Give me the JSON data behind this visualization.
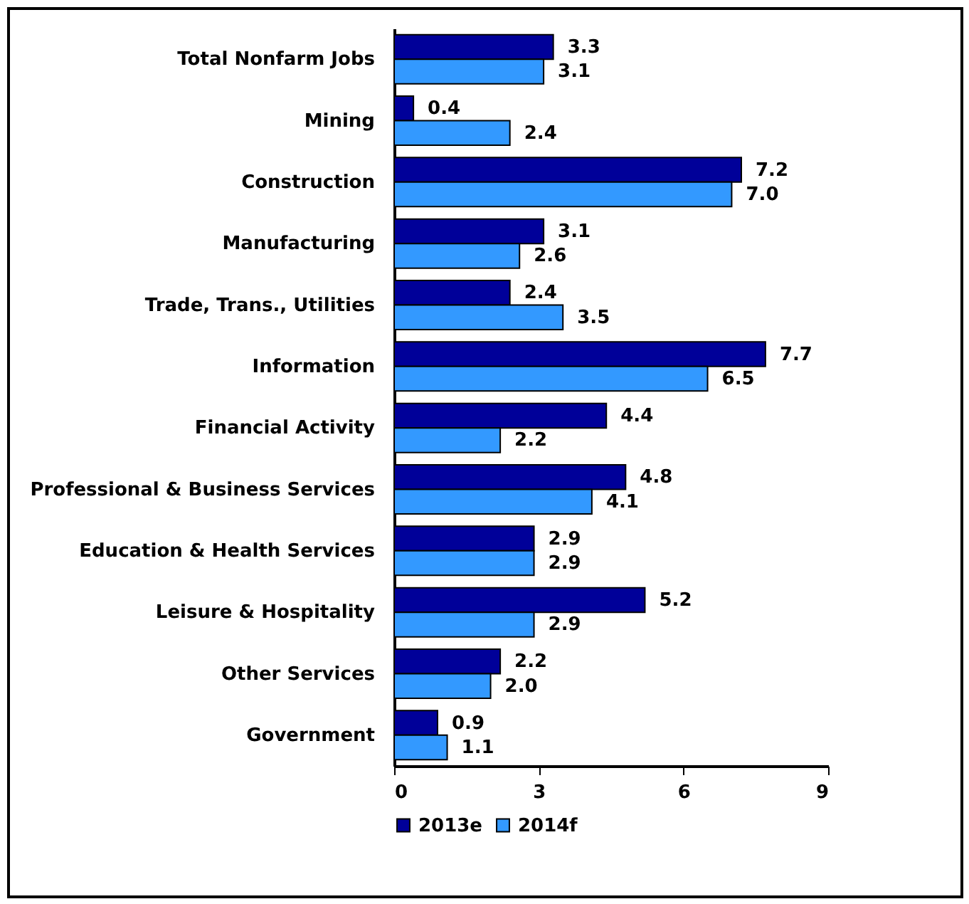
{
  "chart_data": {
    "type": "bar",
    "orientation": "horizontal",
    "categories": [
      "Total Nonfarm Jobs",
      "Mining",
      "Construction",
      "Manufacturing",
      "Trade, Trans., Utilities",
      "Information",
      "Financial Activity",
      "Professional & Business Services",
      "Education & Health Services",
      "Leisure & Hospitality",
      "Other Services",
      "Government"
    ],
    "series": [
      {
        "name": "2013e",
        "color": "#000099",
        "values": [
          3.3,
          0.4,
          7.2,
          3.1,
          2.4,
          7.7,
          4.4,
          4.8,
          2.9,
          5.2,
          2.2,
          0.9
        ],
        "value_labels": [
          "3.3",
          "0.4",
          "7.2",
          "3.1",
          "2.4",
          "7.7",
          "4.4",
          "4.8",
          "2.9",
          "5.2",
          "2.2",
          "0.9"
        ]
      },
      {
        "name": "2014f",
        "color": "#3399ff",
        "values": [
          3.1,
          2.4,
          7,
          2.6,
          3.5,
          6.5,
          2.2,
          4.1,
          2.9,
          2.9,
          2,
          1.1
        ],
        "value_labels": [
          "3.1",
          "2.4",
          "7.0",
          "2.6",
          "3.5",
          "6.5",
          "2.2",
          "4.1",
          "2.9",
          "2.9",
          "2.0",
          "1.1"
        ]
      }
    ],
    "xlim": [
      0,
      9
    ],
    "xticks": [
      0,
      3,
      6,
      9
    ],
    "legend": "bottom"
  }
}
